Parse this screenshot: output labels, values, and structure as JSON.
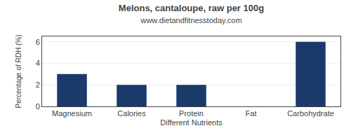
{
  "chart_data": {
    "type": "bar",
    "title": "Melons, cantaloupe, raw per 100g",
    "subtitle": "www.dietandfitnesstoday.com",
    "xlabel": "Different Nutrients",
    "ylabel": "Percentage of RDH (%)",
    "categories": [
      "Magnesium",
      "Calories",
      "Protein",
      "Fat",
      "Carbohydrate"
    ],
    "values": [
      3.0,
      2.0,
      2.0,
      0.0,
      6.0
    ],
    "color": "#1a3a6b",
    "ylim": [
      0,
      6.5
    ],
    "yticks": [
      0,
      2,
      4,
      6
    ],
    "grid": true
  }
}
